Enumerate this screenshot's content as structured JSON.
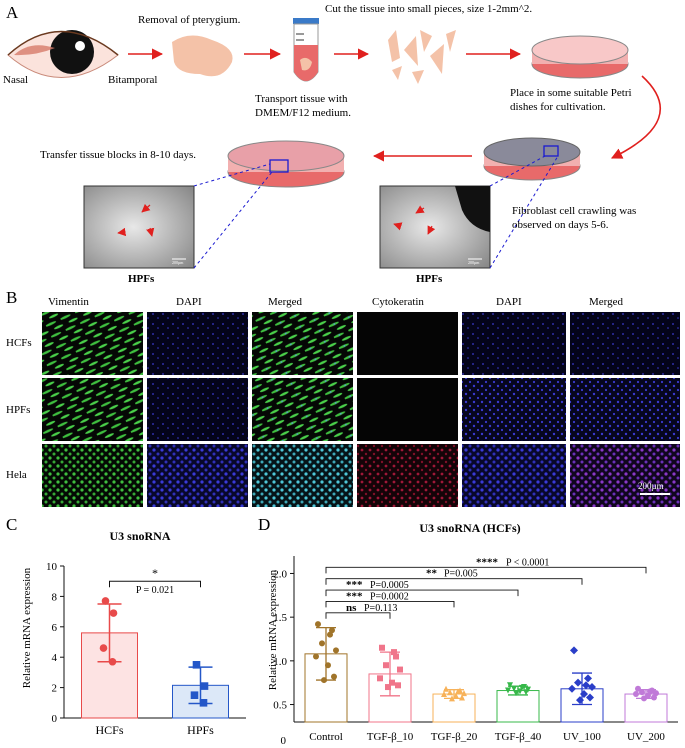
{
  "panel_a": {
    "letter": "A",
    "eye_nasal": "Nasal",
    "eye_bitamporal": "Bitamporal",
    "step_removal": "Removal of pterygium.",
    "step_cut": "Cut the tissue into small pieces, size 1-2mm^2.",
    "step_transport_1": "Transport tissue with",
    "step_transport_2": "DMEM/F12 medium.",
    "step_place_1": "Place in some suitable Petri",
    "step_place_2": "dishes for cultivation.",
    "step_transfer": "Transfer tissue blocks in 8-10 days.",
    "step_crawl_1": "Fibroblast cell crawling was",
    "step_crawl_2": "observed on days 5-6.",
    "micro_label_left": "HPFs",
    "micro_label_right": "HPFs",
    "scale_small": "200µm"
  },
  "panel_b": {
    "letter": "B",
    "columns": [
      "Vimentin",
      "DAPI",
      "Merged",
      "Cytokeratin",
      "DAPI",
      "Merged"
    ],
    "rows": [
      "HCFs",
      "HPFs",
      "Hela"
    ],
    "scale_label": "200µm",
    "colors": {
      "green": "#3fbf3f",
      "blue": "#3a3ad0",
      "cyan": "#4fc7d8",
      "red": "#c02040",
      "purple": "#9040c8"
    }
  },
  "chart_data": [
    {
      "type": "bar",
      "panel": "C",
      "title": "U3 snoRNA",
      "xlabel": "",
      "ylabel": "Relative mRNA expression",
      "ylim": [
        0,
        10
      ],
      "yticks": [
        0,
        2,
        4,
        6,
        8,
        10
      ],
      "categories": [
        "HCFs",
        "HPFs"
      ],
      "values": [
        5.6,
        2.15
      ],
      "errors": [
        1.9,
        1.2
      ],
      "points": [
        [
          7.7,
          6.9,
          4.6,
          3.7
        ],
        [
          3.5,
          2.1,
          1.5,
          1.0
        ]
      ],
      "colors": [
        "#e84a4a",
        "#2457c8"
      ],
      "fills": [
        "#fde3e3",
        "#dce8f8"
      ],
      "significance": {
        "star": "*",
        "p": "P = 0.021"
      }
    },
    {
      "type": "bar",
      "panel": "D",
      "title": "U3 snoRNA (HCFs)",
      "xlabel": "",
      "ylabel": "Relative mRNA expression",
      "ylim": [
        0.3,
        2.2
      ],
      "yticks_labels": [
        "0",
        "0.5",
        "1.0",
        "1.5",
        "2.0"
      ],
      "categories": [
        "Control",
        "TGF-β_10",
        "TGF-β_20",
        "TGF-β_40",
        "UV_100",
        "UV_200"
      ],
      "values": [
        1.08,
        0.85,
        0.62,
        0.66,
        0.68,
        0.62
      ],
      "errors": [
        0.3,
        0.25,
        0.05,
        0.05,
        0.18,
        0.05
      ],
      "points": [
        [
          1.42,
          1.35,
          1.2,
          1.12,
          1.05,
          0.95,
          0.82,
          0.78,
          1.3
        ],
        [
          1.15,
          1.05,
          0.95,
          0.9,
          0.8,
          0.75,
          0.72,
          0.7,
          1.1
        ],
        [
          0.68,
          0.66,
          0.64,
          0.63,
          0.62,
          0.6,
          0.58,
          0.57,
          0.65
        ],
        [
          0.72,
          0.7,
          0.68,
          0.67,
          0.66,
          0.65,
          0.64,
          0.63,
          0.69
        ],
        [
          1.12,
          0.8,
          0.75,
          0.7,
          0.68,
          0.62,
          0.58,
          0.55,
          0.72
        ],
        [
          0.68,
          0.66,
          0.64,
          0.63,
          0.62,
          0.6,
          0.58,
          0.57,
          0.65
        ]
      ],
      "colors": [
        "#a0742a",
        "#f0758a",
        "#f7b25a",
        "#37b84a",
        "#2a3ec8",
        "#c07ad8"
      ],
      "markers": [
        "circle",
        "square",
        "triangle",
        "triangle-down",
        "diamond",
        "circle"
      ],
      "comparisons": [
        {
          "to": 1,
          "stars": "ns",
          "p": "P=0.113"
        },
        {
          "to": 2,
          "stars": "***",
          "p": "P=0.0002"
        },
        {
          "to": 3,
          "stars": "***",
          "p": "P=0.0005"
        },
        {
          "to": 4,
          "stars": "**",
          "p": "P=0.005"
        },
        {
          "to": 5,
          "stars": "****",
          "p": "P < 0.0001"
        }
      ]
    }
  ]
}
